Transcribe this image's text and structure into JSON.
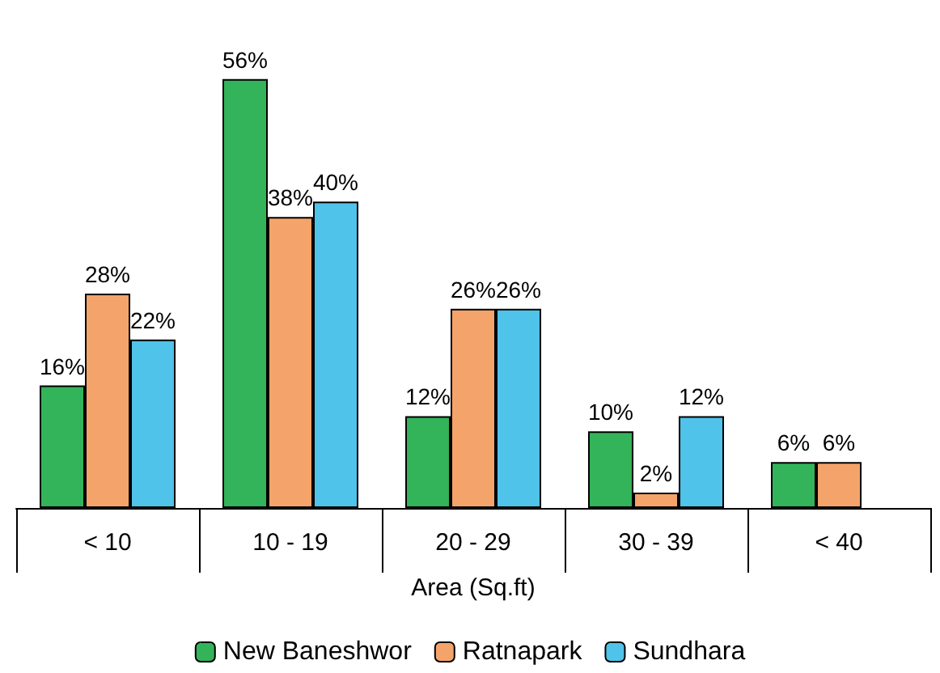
{
  "chart_data": {
    "type": "bar",
    "xlabel": "Area (Sq.ft)",
    "categories": [
      "< 10",
      "10 - 19",
      "20 - 29",
      "30 - 39",
      "< 40"
    ],
    "series": [
      {
        "name": "New Baneshwor",
        "color": "#33b35a",
        "values": [
          16,
          56,
          12,
          10,
          6
        ],
        "value_labels": [
          "16%",
          "56%",
          "12%",
          "10%",
          "6%"
        ]
      },
      {
        "name": "Ratnapark",
        "color": "#f4a46a",
        "values": [
          28,
          38,
          26,
          2,
          6
        ],
        "value_labels": [
          "28%",
          "38%",
          "26%",
          "2%",
          "6%"
        ]
      },
      {
        "name": "Sundhara",
        "color": "#4fc3ea",
        "values": [
          22,
          40,
          26,
          12,
          null
        ],
        "value_labels": [
          "22%",
          "40%",
          "26%",
          "12%",
          null
        ]
      }
    ],
    "legend": "bottom",
    "grid": false
  }
}
